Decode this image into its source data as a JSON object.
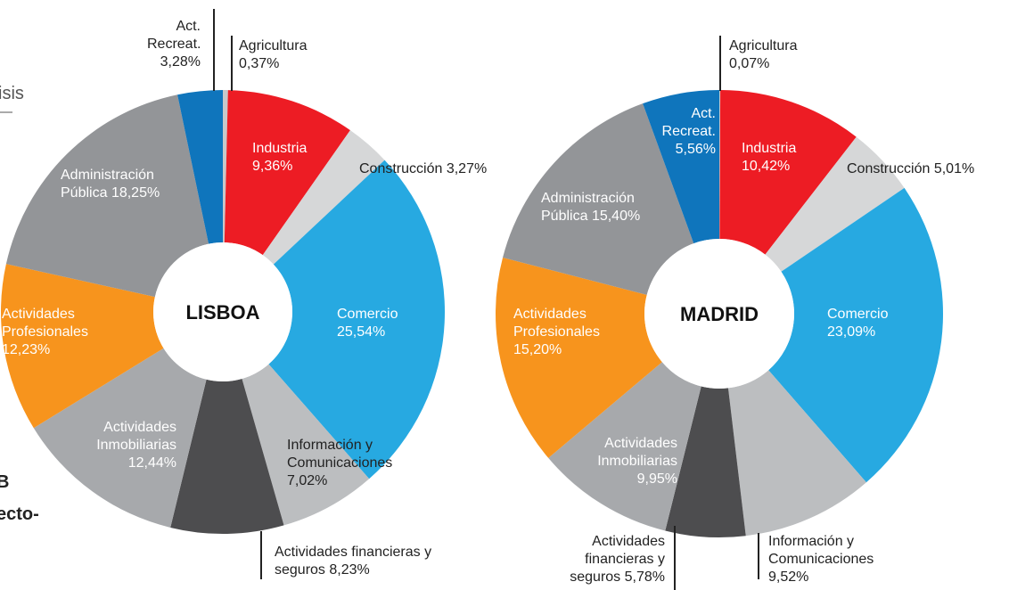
{
  "chart_data": [
    {
      "type": "pie",
      "title": "LISBOA",
      "categories": [
        "Agricultura",
        "Industria",
        "Construcción",
        "Comercio",
        "Información y Comunicaciones",
        "Actividades financieras y seguros",
        "Actividades Inmobiliarias",
        "Actividades Profesionales",
        "Administración Pública",
        "Act. Recreat."
      ],
      "values": [
        0.37,
        9.36,
        3.27,
        25.54,
        7.02,
        8.23,
        12.44,
        12.23,
        18.25,
        3.28
      ],
      "value_labels": [
        "0,37%",
        "9,36%",
        "3,27%",
        "25,54%",
        "7,02%",
        "8,23%",
        "12,44%",
        "12,23%",
        "18,25%",
        "3,28%"
      ],
      "colors": [
        "#c7c8ca",
        "#ed1c24",
        "#d6d7d8",
        "#27a9e1",
        "#bcbec0",
        "#4d4d4f",
        "#a7a9ac",
        "#f7941d",
        "#939598",
        "#0f75bc"
      ]
    },
    {
      "type": "pie",
      "title": "MADRID",
      "categories": [
        "Agricultura",
        "Industria",
        "Construcción",
        "Comercio",
        "Información y Comunicaciones",
        "Actividades financieras y seguros",
        "Actividades Inmobiliarias",
        "Actividades Profesionales",
        "Administración Pública",
        "Act. Recreat."
      ],
      "values": [
        0.07,
        10.42,
        5.01,
        23.09,
        9.52,
        5.78,
        9.95,
        15.2,
        15.4,
        5.56
      ],
      "value_labels": [
        "0,07%",
        "10,42%",
        "5,01%",
        "23,09%",
        "9,52%",
        "5,78%",
        "9,95%",
        "15,20%",
        "15,40%",
        "5,56%"
      ],
      "colors": [
        "#c7c8ca",
        "#ed1c24",
        "#d6d7d8",
        "#27a9e1",
        "#bcbec0",
        "#4d4d4f",
        "#a7a9ac",
        "#f7941d",
        "#939598",
        "#0f75bc"
      ]
    }
  ],
  "background_text": [
    "isis",
    "B",
    "ecto-"
  ]
}
